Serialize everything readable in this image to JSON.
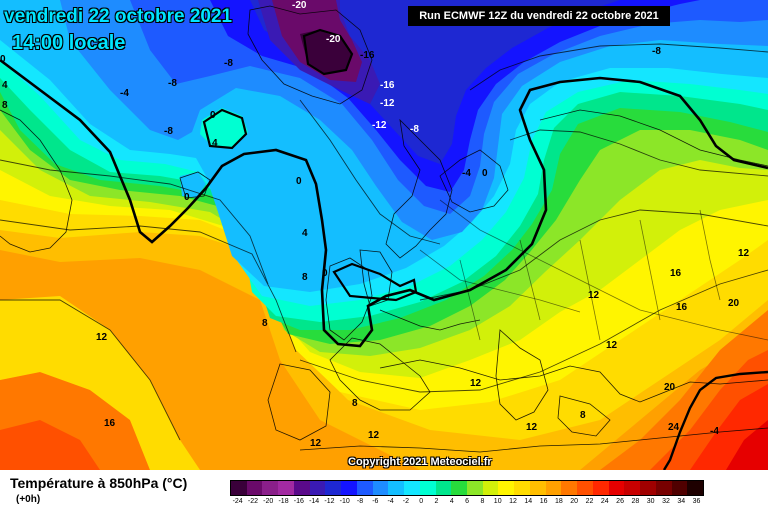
{
  "header": {
    "date": "vendredi 22 octobre 2021",
    "time": "14:00 locale",
    "run": "Run ECMWF 12Z du vendredi 22 octobre 2021"
  },
  "copyright": "Copyright 2021 Meteociel.fr",
  "footer": {
    "title": "Température à 850hPa (°C)",
    "subtitle": "(+0h)"
  },
  "map_labels": [
    {
      "text": "-20",
      "tone": "dark"
    },
    {
      "text": "-20",
      "tone": "dark"
    },
    {
      "text": "-16",
      "tone": "dark"
    },
    {
      "text": "-16",
      "tone": "light"
    },
    {
      "text": "-12",
      "tone": "light"
    },
    {
      "text": "-12",
      "tone": "light"
    },
    {
      "text": "-8",
      "tone": "dark"
    },
    {
      "text": "-8",
      "tone": "dark"
    },
    {
      "text": "-8",
      "tone": "dark"
    },
    {
      "text": "-8",
      "tone": "dark"
    },
    {
      "text": "-8",
      "tone": "light"
    },
    {
      "text": "-4",
      "tone": "dark"
    },
    {
      "text": "-4",
      "tone": "dark"
    },
    {
      "text": "0",
      "tone": "dark"
    },
    {
      "text": "0",
      "tone": "dark"
    },
    {
      "text": "0",
      "tone": "dark"
    },
    {
      "text": "0",
      "tone": "dark"
    },
    {
      "text": "0",
      "tone": "dark"
    },
    {
      "text": "0",
      "tone": "dark"
    },
    {
      "text": "4",
      "tone": "dark"
    },
    {
      "text": "4",
      "tone": "dark"
    },
    {
      "text": "4",
      "tone": "dark"
    },
    {
      "text": "8",
      "tone": "dark"
    },
    {
      "text": "8",
      "tone": "dark"
    },
    {
      "text": "8",
      "tone": "dark"
    },
    {
      "text": "8",
      "tone": "dark"
    },
    {
      "text": "8",
      "tone": "dark"
    },
    {
      "text": "12",
      "tone": "dark"
    },
    {
      "text": "12",
      "tone": "dark"
    },
    {
      "text": "12",
      "tone": "dark"
    },
    {
      "text": "12",
      "tone": "dark"
    },
    {
      "text": "12",
      "tone": "dark"
    },
    {
      "text": "12",
      "tone": "dark"
    },
    {
      "text": "12",
      "tone": "dark"
    },
    {
      "text": "12",
      "tone": "dark"
    },
    {
      "text": "16",
      "tone": "dark"
    },
    {
      "text": "16",
      "tone": "dark"
    },
    {
      "text": "16",
      "tone": "dark"
    },
    {
      "text": "20",
      "tone": "dark"
    },
    {
      "text": "20",
      "tone": "dark"
    },
    {
      "text": "24",
      "tone": "dark"
    },
    {
      "text": "-4",
      "tone": "dark"
    }
  ],
  "legend": {
    "labels": [
      "-24",
      "-22",
      "-20",
      "-18",
      "-16",
      "-14",
      "-12",
      "-10",
      "-8",
      "-6",
      "-4",
      "-2",
      "0",
      "2",
      "4",
      "6",
      "8",
      "10",
      "12",
      "14",
      "16",
      "18",
      "20",
      "22",
      "24",
      "26",
      "28",
      "30",
      "32",
      "34",
      "36"
    ],
    "colors": [
      "#3a003a",
      "#6a0a6a",
      "#8a1f8a",
      "#a22aa2",
      "#5a0a8a",
      "#3a1ab4",
      "#1e28d2",
      "#1414ff",
      "#1e5aff",
      "#1e8cff",
      "#14beff",
      "#14e6ff",
      "#00ffd2",
      "#00e68c",
      "#28dc3c",
      "#8ce628",
      "#d2f00a",
      "#fff500",
      "#ffdc00",
      "#ffbe00",
      "#ffa000",
      "#ff7800",
      "#ff5000",
      "#ff2800",
      "#e60000",
      "#c80000",
      "#a00000",
      "#780000",
      "#500000",
      "#1e0000"
    ]
  }
}
